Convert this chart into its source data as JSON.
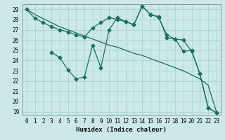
{
  "xlabel": "Humidex (Indice chaleur)",
  "bg_color": "#cce8e8",
  "grid_color": "#aad4d4",
  "line_color": "#1a7060",
  "xlim": [
    -0.5,
    23.5
  ],
  "ylim": [
    18.7,
    29.5
  ],
  "yticks": [
    19,
    20,
    21,
    22,
    23,
    24,
    25,
    26,
    27,
    28,
    29
  ],
  "xticks": [
    0,
    1,
    2,
    3,
    4,
    5,
    6,
    7,
    8,
    9,
    10,
    11,
    12,
    13,
    14,
    15,
    16,
    17,
    18,
    19,
    20,
    21,
    22,
    23
  ],
  "line1_x": [
    0,
    1,
    2,
    3,
    4,
    5,
    6,
    7,
    8,
    9,
    10,
    11,
    12,
    13,
    14,
    15,
    16,
    17,
    18,
    19,
    20,
    21,
    22,
    23
  ],
  "line1_y": [
    29.0,
    28.1,
    27.7,
    27.3,
    27.0,
    26.8,
    26.5,
    26.3,
    27.2,
    27.7,
    28.2,
    28.0,
    27.8,
    27.5,
    29.3,
    28.5,
    28.2,
    26.5,
    26.1,
    24.9,
    25.0,
    22.7,
    19.4,
    18.9
  ],
  "line2_x": [
    0,
    1,
    2,
    3,
    4,
    5,
    6,
    7,
    8,
    9,
    10,
    11,
    12,
    13,
    14,
    15,
    16,
    17,
    18,
    19,
    20,
    21,
    22,
    23
  ],
  "line2_y": [
    29.0,
    28.5,
    28.1,
    27.7,
    27.3,
    27.0,
    26.7,
    26.4,
    26.1,
    25.8,
    25.5,
    25.3,
    25.0,
    24.7,
    24.5,
    24.2,
    23.9,
    23.6,
    23.3,
    23.0,
    22.6,
    22.2,
    21.6,
    19.0
  ],
  "line3_x": [
    3,
    4,
    5,
    6,
    7,
    8,
    9,
    10,
    11,
    12,
    13,
    14,
    15,
    16,
    17,
    18,
    19,
    20,
    21,
    22,
    23
  ],
  "line3_y": [
    24.8,
    24.3,
    23.1,
    22.2,
    22.4,
    25.5,
    23.3,
    27.0,
    28.2,
    27.8,
    27.5,
    29.3,
    28.5,
    28.3,
    26.2,
    26.1,
    26.0,
    24.9,
    22.7,
    19.4,
    18.9
  ],
  "markersize": 2.5,
  "linewidth": 0.9,
  "tick_fontsize": 5.5,
  "xlabel_fontsize": 6.5
}
